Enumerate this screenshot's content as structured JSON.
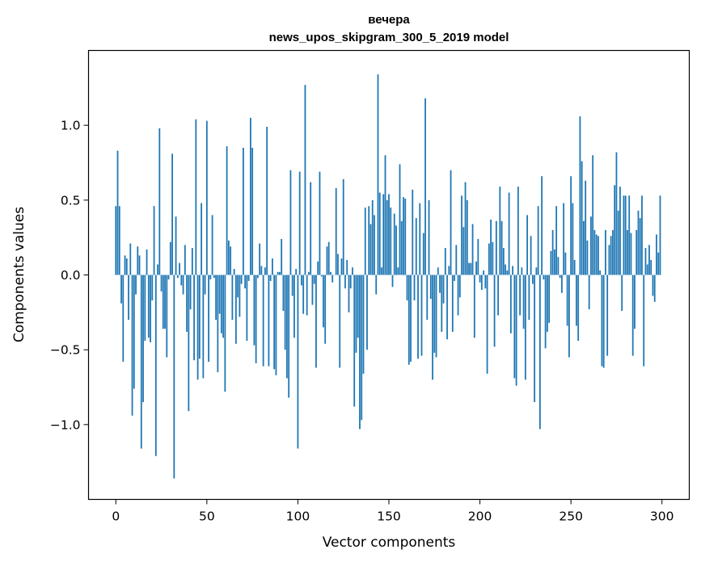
{
  "chart_data": {
    "type": "bar",
    "title": "вечера",
    "subtitle": "news_upos_skipgram_300_5_2019 model",
    "xlabel": "Vector components",
    "ylabel": "Components values",
    "xlim": [
      -15,
      315
    ],
    "ylim": [
      -1.5,
      1.5
    ],
    "xticks": [
      0,
      50,
      100,
      150,
      200,
      250,
      300
    ],
    "xtick_labels": [
      "0",
      "50",
      "100",
      "150",
      "200",
      "250",
      "300"
    ],
    "yticks": [
      -1.0,
      -0.5,
      0.0,
      0.5,
      1.0
    ],
    "ytick_labels": [
      "−1.0",
      "−0.5",
      "0.0",
      "0.5",
      "1.0"
    ],
    "bar_color": "#1f77b4",
    "grid": false,
    "values": [
      0.46,
      0.83,
      0.46,
      -0.19,
      -0.58,
      0.13,
      0.11,
      -0.3,
      0.21,
      -0.94,
      -0.76,
      -0.13,
      0.19,
      0.13,
      -1.16,
      -0.85,
      -0.44,
      0.17,
      -0.42,
      -0.45,
      -0.17,
      0.46,
      -1.21,
      0.07,
      0.98,
      -0.11,
      -0.36,
      -0.36,
      -0.55,
      -0.03,
      0.22,
      0.81,
      -1.36,
      0.39,
      -0.02,
      0.08,
      -0.07,
      -0.13,
      0.2,
      -0.38,
      -0.91,
      -0.23,
      0.18,
      -0.57,
      1.04,
      -0.7,
      -0.56,
      0.48,
      -0.69,
      -0.13,
      1.03,
      -0.58,
      -0.03,
      0.4,
      -0.02,
      -0.3,
      -0.65,
      -0.26,
      -0.39,
      -0.42,
      -0.78,
      0.86,
      0.23,
      0.19,
      -0.3,
      0.04,
      -0.46,
      -0.15,
      -0.28,
      -0.06,
      0.85,
      -0.09,
      -0.44,
      -0.04,
      1.05,
      0.85,
      -0.47,
      -0.59,
      -0.02,
      0.21,
      0.06,
      -0.61,
      0.05,
      0.99,
      -0.61,
      -0.04,
      0.11,
      -0.63,
      -0.67,
      0.02,
      0.02,
      0.24,
      -0.24,
      -0.5,
      -0.69,
      -0.82,
      0.7,
      -0.14,
      -0.42,
      0.04,
      -1.16,
      0.69,
      -0.07,
      -0.26,
      1.27,
      -0.27,
      0.02,
      0.62,
      -0.2,
      -0.06,
      -0.62,
      0.09,
      0.69,
      -0.01,
      -0.35,
      -0.46,
      0.19,
      0.22,
      0.02,
      -0.05,
      0.0,
      0.58,
      0.14,
      -0.62,
      0.11,
      0.64,
      -0.09,
      0.1,
      -0.25,
      -0.09,
      0.05,
      -0.88,
      -0.52,
      -0.42,
      -1.03,
      -0.97,
      -0.66,
      0.45,
      -0.5,
      0.46,
      0.34,
      0.5,
      0.4,
      -0.13,
      1.34,
      0.55,
      0.05,
      0.54,
      0.8,
      0.5,
      0.54,
      0.45,
      -0.08,
      0.41,
      0.33,
      0.05,
      0.74,
      0.36,
      0.52,
      0.51,
      -0.17,
      -0.6,
      -0.58,
      0.57,
      -0.17,
      0.38,
      -0.56,
      0.48,
      -0.54,
      0.28,
      1.18,
      -0.3,
      0.5,
      -0.16,
      -0.7,
      -0.52,
      -0.55,
      0.05,
      -0.12,
      -0.38,
      -0.19,
      0.18,
      -0.43,
      0.06,
      0.7,
      -0.38,
      -0.04,
      0.2,
      -0.27,
      -0.15,
      0.53,
      0.32,
      0.62,
      0.5,
      0.08,
      0.08,
      0.34,
      -0.42,
      0.09,
      0.24,
      -0.05,
      -0.1,
      0.03,
      -0.09,
      -0.66,
      0.21,
      0.37,
      0.22,
      -0.48,
      0.36,
      -0.27,
      0.59,
      0.36,
      0.18,
      0.07,
      0.03,
      0.55,
      -0.39,
      0.06,
      -0.69,
      -0.74,
      0.59,
      -0.27,
      0.05,
      -0.36,
      -0.7,
      0.4,
      -0.3,
      0.26,
      -0.06,
      -0.85,
      0.05,
      0.46,
      -1.03,
      0.66,
      -0.03,
      -0.49,
      -0.38,
      -0.32,
      0.16,
      0.3,
      0.17,
      0.46,
      0.12,
      -0.02,
      -0.12,
      0.48,
      0.15,
      -0.34,
      -0.55,
      0.66,
      0.48,
      0.1,
      -0.34,
      -0.44,
      1.06,
      0.76,
      0.36,
      0.63,
      0.23,
      -0.23,
      0.39,
      0.8,
      0.3,
      0.27,
      0.26,
      0.03,
      -0.61,
      -0.62,
      0.3,
      -0.54,
      0.2,
      0.26,
      0.3,
      0.6,
      0.82,
      0.43,
      0.59,
      -0.24,
      0.53,
      0.53,
      0.3,
      0.53,
      0.28,
      -0.54,
      -0.36,
      0.3,
      0.43,
      0.38,
      0.53,
      -0.61,
      0.18,
      0.07,
      0.2,
      0.1,
      -0.14,
      -0.18,
      0.27,
      0.15,
      0.53
    ]
  }
}
